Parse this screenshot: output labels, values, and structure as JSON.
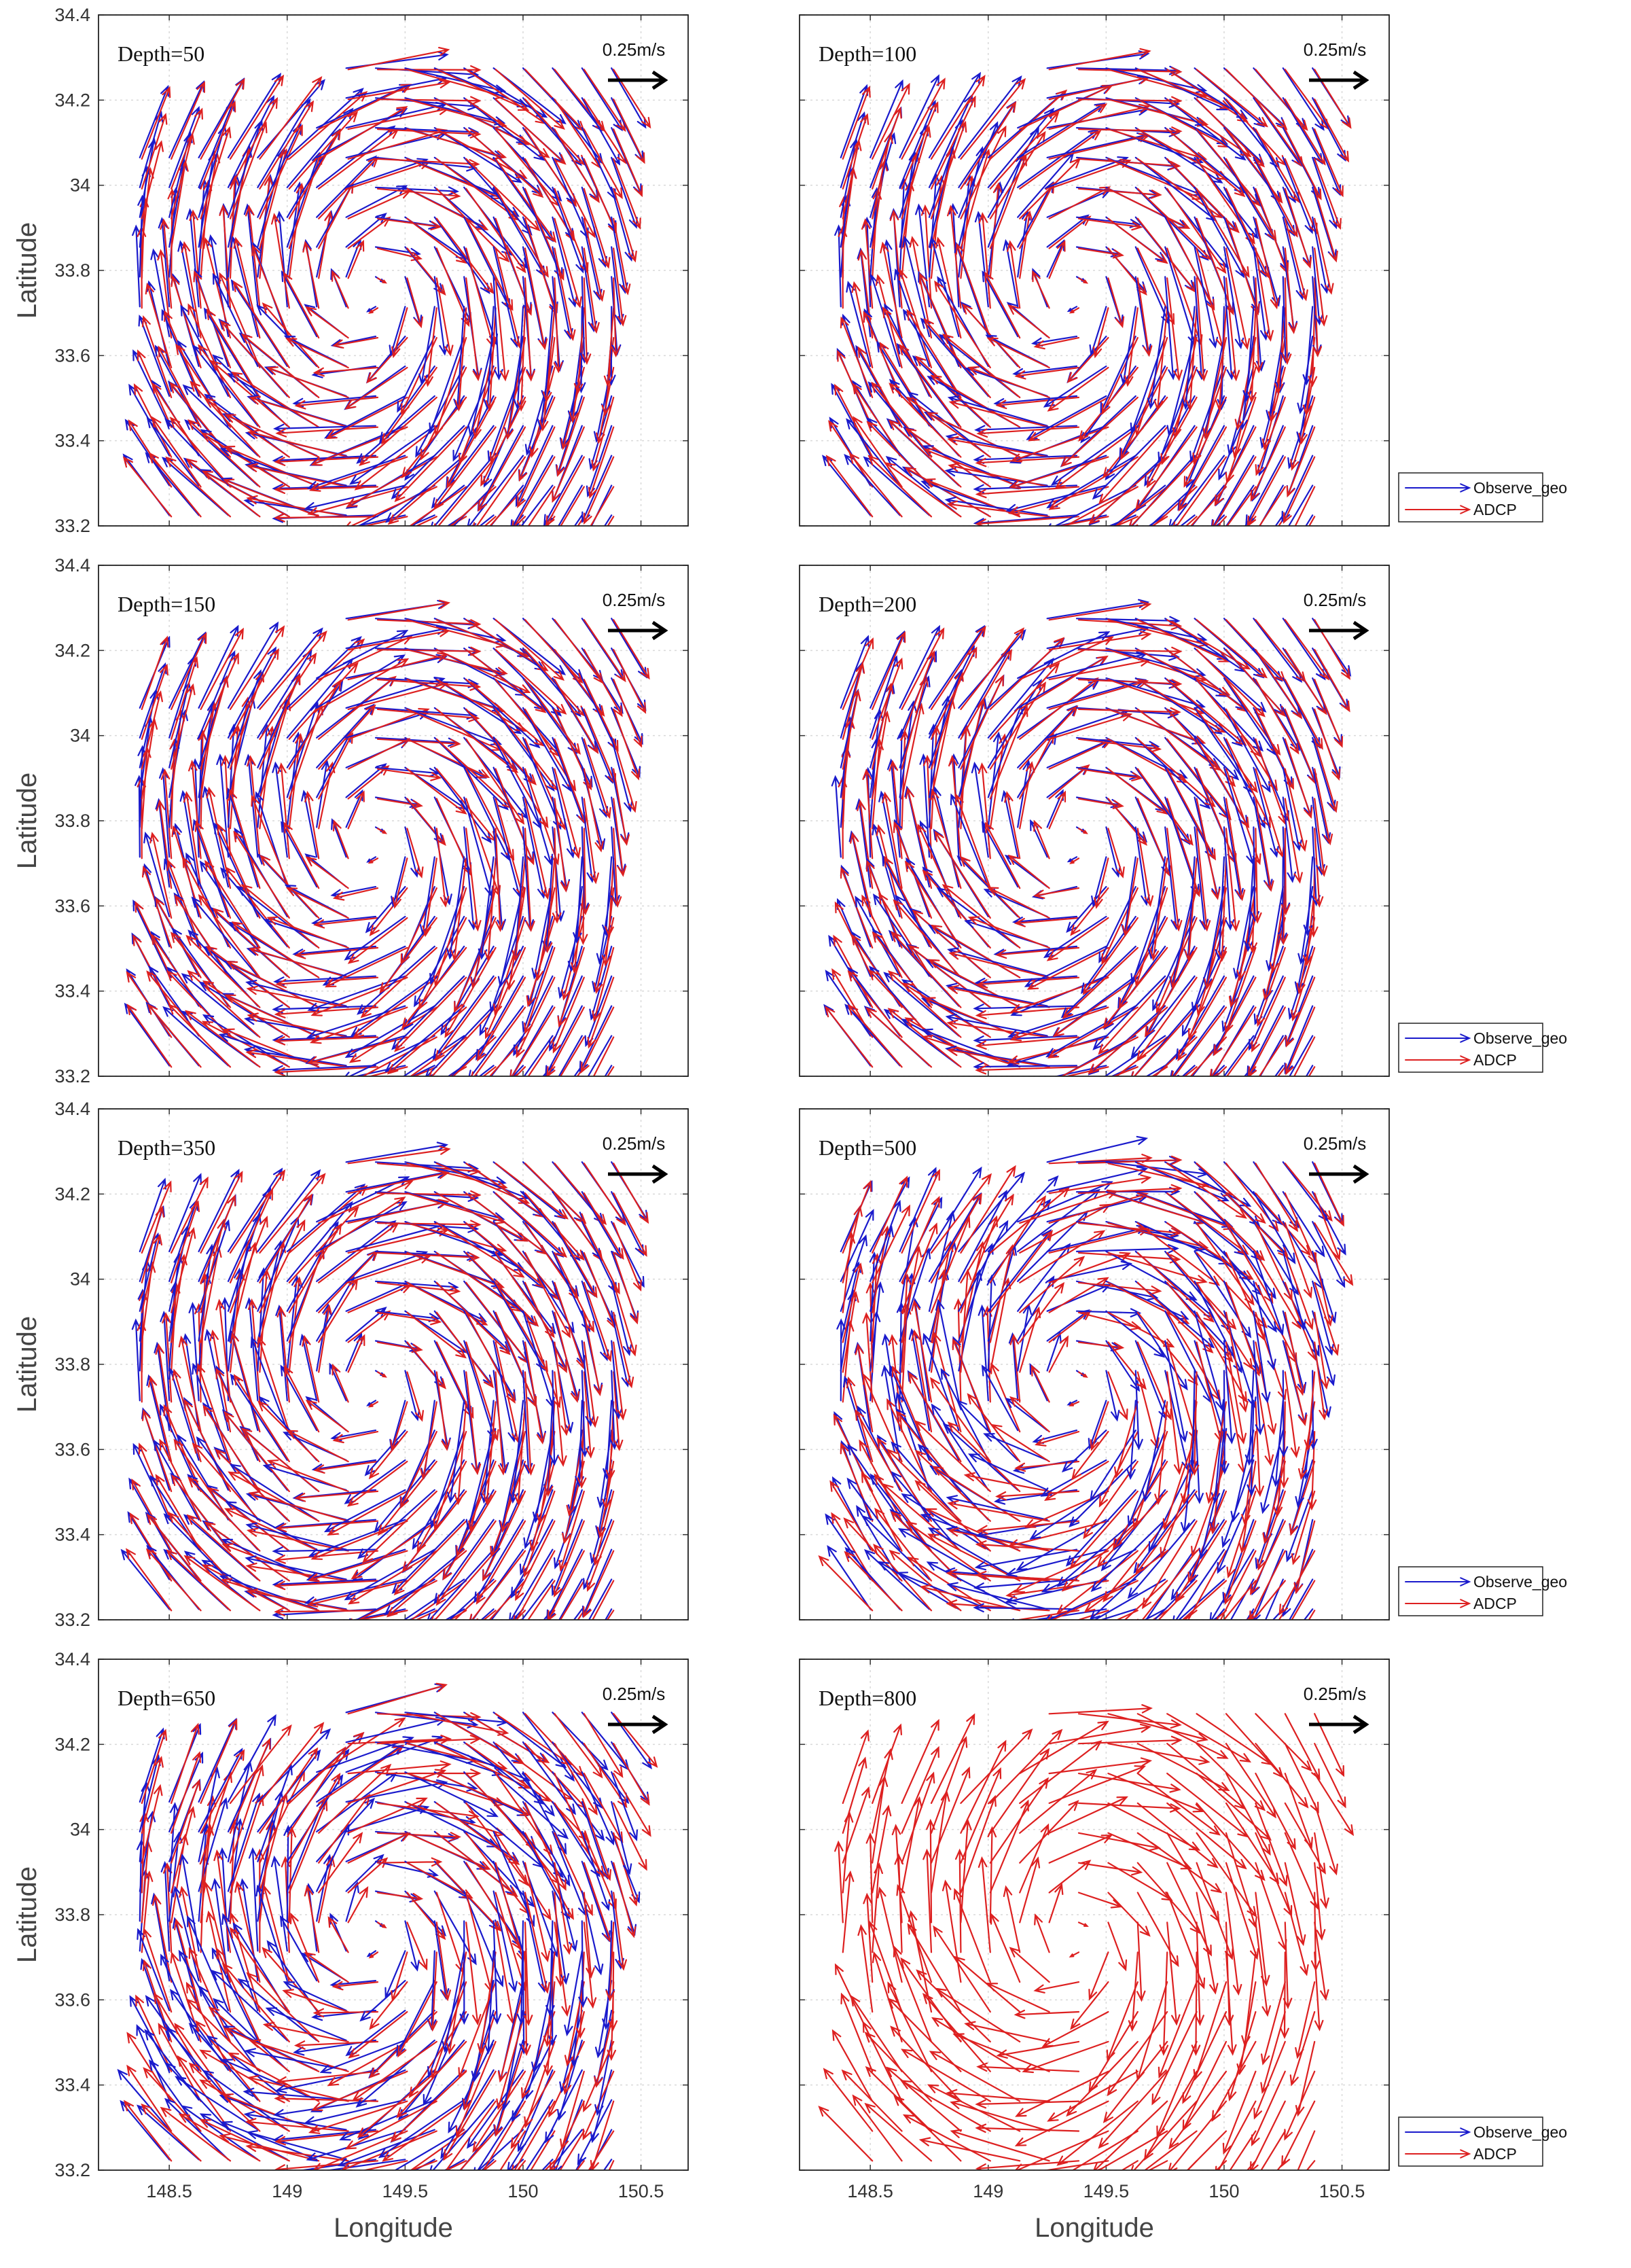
{
  "chart_data": {
    "type": "quiver",
    "xlabel": "Longitude",
    "ylabel": "Latitude",
    "xlim": [
      148.2,
      150.7
    ],
    "ylim": [
      33.2,
      34.4
    ],
    "xticks": [
      "148.5",
      "149",
      "149.5",
      "150",
      "150.5"
    ],
    "yticks": [
      "33.2",
      "33.4",
      "33.6",
      "33.8",
      "34",
      "34.2",
      "34.4"
    ],
    "grid": true,
    "eddy_center": {
      "lon": 149.35,
      "lat": 33.75
    },
    "scale_label": "0.25m/s",
    "scale_speed_ms": 0.25,
    "legend_entries": [
      "Observe_geo",
      "ADCP"
    ],
    "colors": {
      "observe_geo": "#1a1acc",
      "adcp": "#dd2020",
      "scale": "#000000"
    },
    "panels": [
      {
        "depth_label": "Depth=50",
        "series": [
          "Observe_geo",
          "ADCP"
        ],
        "legend": false
      },
      {
        "depth_label": "Depth=100",
        "series": [
          "Observe_geo",
          "ADCP"
        ],
        "legend": true
      },
      {
        "depth_label": "Depth=150",
        "series": [
          "Observe_geo",
          "ADCP"
        ],
        "legend": false
      },
      {
        "depth_label": "Depth=200",
        "series": [
          "Observe_geo",
          "ADCP"
        ],
        "legend": true
      },
      {
        "depth_label": "Depth=350",
        "series": [
          "Observe_geo",
          "ADCP"
        ],
        "legend": false
      },
      {
        "depth_label": "Depth=500",
        "series": [
          "Observe_geo",
          "ADCP"
        ],
        "legend": true
      },
      {
        "depth_label": "Depth=650",
        "series": [
          "Observe_geo",
          "ADCP"
        ],
        "legend": false
      },
      {
        "depth_label": "Depth=800",
        "series": [
          "ADCP"
        ],
        "legend": true
      }
    ]
  }
}
